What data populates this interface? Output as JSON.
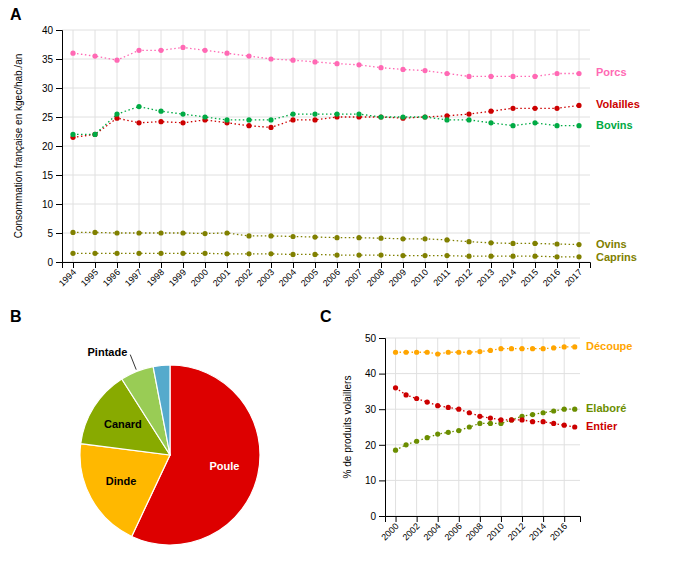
{
  "chart_data": [
    {
      "type": "line",
      "title": "A",
      "ylabel": "Consommation française en kgec/hab./an",
      "x": [
        1994,
        1995,
        1996,
        1997,
        1998,
        1999,
        2000,
        2001,
        2002,
        2003,
        2004,
        2005,
        2006,
        2007,
        2008,
        2009,
        2010,
        2011,
        2012,
        2013,
        2014,
        2015,
        2016,
        2017
      ],
      "xlim": [
        1993.5,
        2017.5
      ],
      "xticks": [
        1994,
        1995,
        1996,
        1997,
        1998,
        1999,
        2000,
        2001,
        2002,
        2003,
        2004,
        2005,
        2006,
        2007,
        2008,
        2009,
        2010,
        2011,
        2012,
        2013,
        2014,
        2015,
        2016,
        2017
      ],
      "ylim": [
        0,
        40
      ],
      "yticks": [
        0,
        5,
        10,
        15,
        20,
        25,
        30,
        35,
        40
      ],
      "grid": true,
      "marker": "circle",
      "line_style": "dotted",
      "series": [
        {
          "name": "Porcs",
          "color": "#FF69B4",
          "values": [
            36.0,
            35.5,
            34.8,
            36.5,
            36.5,
            37.0,
            36.5,
            36.0,
            35.5,
            35.0,
            34.8,
            34.5,
            34.2,
            34.0,
            33.5,
            33.2,
            33.0,
            32.5,
            32.0,
            32.0,
            32.0,
            32.0,
            32.5,
            32.5
          ]
        },
        {
          "name": "Volailles",
          "color": "#CC0000",
          "values": [
            21.5,
            22.0,
            24.8,
            24.0,
            24.2,
            24.0,
            24.5,
            24.0,
            23.5,
            23.2,
            24.5,
            24.5,
            25.0,
            25.0,
            25.0,
            24.8,
            25.0,
            25.2,
            25.5,
            26.0,
            26.5,
            26.5,
            26.5,
            27.0
          ]
        },
        {
          "name": "Bovins",
          "color": "#00AA44",
          "values": [
            22.0,
            22.0,
            25.5,
            26.8,
            26.0,
            25.5,
            25.0,
            24.5,
            24.5,
            24.5,
            25.5,
            25.5,
            25.5,
            25.5,
            25.0,
            25.0,
            25.0,
            24.5,
            24.5,
            24.0,
            23.5,
            24.0,
            23.5,
            23.5
          ]
        },
        {
          "name": "Ovins",
          "color": "#808000",
          "values": [
            5.1,
            5.1,
            5.0,
            5.0,
            5.0,
            5.0,
            4.9,
            5.0,
            4.5,
            4.5,
            4.4,
            4.3,
            4.2,
            4.2,
            4.1,
            4.0,
            4.0,
            3.8,
            3.5,
            3.3,
            3.2,
            3.2,
            3.1,
            3.0
          ]
        },
        {
          "name": "Caprins",
          "color": "#808000",
          "values": [
            1.5,
            1.5,
            1.5,
            1.5,
            1.5,
            1.5,
            1.5,
            1.4,
            1.4,
            1.4,
            1.3,
            1.3,
            1.2,
            1.2,
            1.2,
            1.1,
            1.1,
            1.1,
            1.0,
            1.0,
            1.0,
            1.0,
            0.9,
            0.9
          ]
        }
      ]
    },
    {
      "type": "pie",
      "title": "B",
      "categories": [
        "Poule",
        "Dinde",
        "Canard",
        "Pintade",
        null
      ],
      "values": [
        57,
        20,
        14,
        6,
        3
      ],
      "colors": [
        "#DD0000",
        "#FFB800",
        "#88AA00",
        "#99CC55",
        "#55AACC"
      ]
    },
    {
      "type": "line",
      "title": "C",
      "ylabel": "% de produits volaillers",
      "x": [
        2000,
        2001,
        2002,
        2003,
        2004,
        2005,
        2006,
        2007,
        2008,
        2009,
        2010,
        2011,
        2012,
        2013,
        2014,
        2015,
        2016,
        2017
      ],
      "xlim": [
        1999,
        2017.5
      ],
      "xticks": [
        2000,
        2002,
        2004,
        2006,
        2008,
        2010,
        2012,
        2014,
        2016
      ],
      "ylim": [
        0,
        50
      ],
      "yticks": [
        0,
        10,
        20,
        30,
        40,
        50
      ],
      "grid": true,
      "marker": "circle",
      "line_style": "dotted",
      "series": [
        {
          "name": "Découpe",
          "color": "#FFA500",
          "values": [
            46.0,
            46.0,
            46.0,
            46.0,
            45.5,
            46.0,
            46.0,
            46.0,
            46.2,
            46.5,
            47.0,
            47.0,
            47.0,
            47.0,
            47.0,
            47.2,
            47.5,
            47.5
          ]
        },
        {
          "name": "Elaboré",
          "color": "#6B8E00",
          "values": [
            18.5,
            20.0,
            21.0,
            22.0,
            23.0,
            23.5,
            24.0,
            25.0,
            26.0,
            26.0,
            26.0,
            27.0,
            28.0,
            28.5,
            29.0,
            29.5,
            30.0,
            30.0
          ]
        },
        {
          "name": "Entier",
          "color": "#CC0000",
          "values": [
            36.0,
            34.0,
            33.0,
            32.0,
            31.0,
            30.5,
            30.0,
            29.0,
            28.0,
            27.5,
            27.0,
            27.0,
            27.0,
            26.5,
            26.5,
            26.0,
            25.5,
            25.0
          ]
        }
      ]
    }
  ]
}
